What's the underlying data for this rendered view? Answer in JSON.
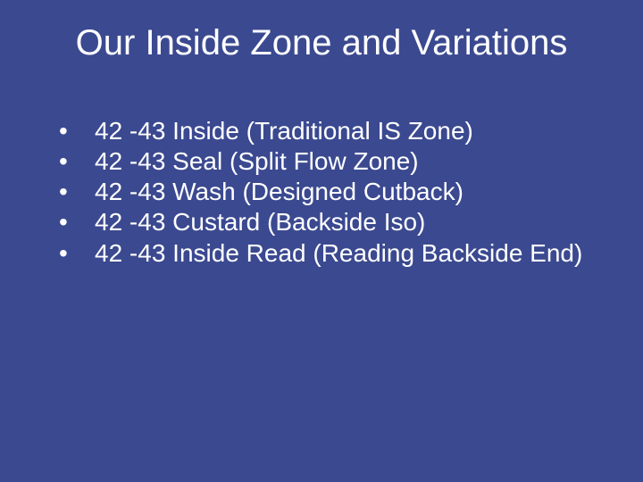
{
  "slide": {
    "background_color": "#3b4990",
    "text_color": "#ffffff",
    "font_family": "Arial",
    "title": {
      "text": "Our Inside Zone and Variations",
      "fontsize": 40
    },
    "bullets": {
      "fontsize": 28,
      "items": [
        "42 -43 Inside (Traditional IS Zone)",
        "42 -43 Seal (Split Flow Zone)",
        "42 -43 Wash (Designed Cutback)",
        "42 -43 Custard (Backside Iso)",
        "42 -43 Inside Read (Reading Backside End)"
      ]
    }
  }
}
